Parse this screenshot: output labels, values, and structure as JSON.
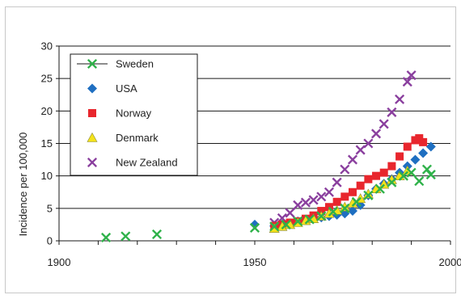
{
  "chart_data": {
    "type": "scatter",
    "title": "",
    "xlabel": "",
    "ylabel": "Incidence per 100,000",
    "xlim": [
      1900,
      2000
    ],
    "ylim": [
      0,
      30
    ],
    "xticks": [
      1900,
      1950,
      2000
    ],
    "xtick_labels": [
      "1900",
      "1950",
      "2000"
    ],
    "yticks": [
      0,
      5,
      10,
      15,
      20,
      25,
      30
    ],
    "ytick_labels": [
      "0",
      "5",
      "10",
      "15",
      "20",
      "25",
      "30"
    ],
    "grid": "horizontal",
    "legend_position": "top-left",
    "series": [
      {
        "name": "Sweden",
        "marker": "x-cross",
        "color": "#2fb24a",
        "x": [
          1912,
          1917,
          1925,
          1950,
          1955,
          1958,
          1961,
          1964,
          1967,
          1970,
          1973,
          1976,
          1979,
          1982,
          1985,
          1988,
          1990,
          1992,
          1994,
          1995
        ],
        "y": [
          0.5,
          0.7,
          1.0,
          2.0,
          2.2,
          2.5,
          3.0,
          3.3,
          3.8,
          4.5,
          5.0,
          6.0,
          7.0,
          8.0,
          9.0,
          10.0,
          10.5,
          9.2,
          11.0,
          10.2
        ]
      },
      {
        "name": "USA",
        "marker": "diamond",
        "color": "#1f6fc1",
        "x": [
          1950,
          1955,
          1957,
          1959,
          1961,
          1963,
          1965,
          1967,
          1969,
          1971,
          1973,
          1975,
          1977,
          1979,
          1981,
          1983,
          1985,
          1987,
          1989,
          1991,
          1993,
          1995
        ],
        "y": [
          2.5,
          2.3,
          2.5,
          2.7,
          3.0,
          3.2,
          3.4,
          3.6,
          3.8,
          4.0,
          4.2,
          4.6,
          5.5,
          7.0,
          8.0,
          8.8,
          9.5,
          10.5,
          11.5,
          12.5,
          13.5,
          14.5
        ]
      },
      {
        "name": "Norway",
        "marker": "square",
        "color": "#e8262d",
        "x": [
          1955,
          1957,
          1959,
          1961,
          1963,
          1965,
          1967,
          1969,
          1971,
          1973,
          1975,
          1977,
          1979,
          1981,
          1983,
          1985,
          1987,
          1989,
          1991,
          1992,
          1993
        ],
        "y": [
          2.3,
          2.5,
          2.8,
          3.0,
          3.4,
          3.9,
          4.6,
          5.2,
          6.0,
          6.8,
          7.5,
          8.5,
          9.5,
          10.0,
          10.5,
          11.5,
          13.0,
          14.5,
          15.5,
          15.8,
          15.2
        ]
      },
      {
        "name": "Denmark",
        "marker": "triangle",
        "color": "#f4e21a",
        "x": [
          1955,
          1957,
          1959,
          1961,
          1963,
          1965,
          1967,
          1969,
          1971,
          1973,
          1975,
          1977,
          1979,
          1981,
          1983,
          1985,
          1987,
          1989
        ],
        "y": [
          1.9,
          2.2,
          2.5,
          2.8,
          3.1,
          3.4,
          3.8,
          4.2,
          4.7,
          5.2,
          5.8,
          6.5,
          7.2,
          8.0,
          8.7,
          9.4,
          10.0,
          10.8
        ]
      },
      {
        "name": "New Zealand",
        "marker": "x-cross",
        "color": "#8a3f9e",
        "x": [
          1955,
          1957,
          1959,
          1961,
          1963,
          1965,
          1967,
          1969,
          1971,
          1973,
          1975,
          1977,
          1979,
          1981,
          1983,
          1985,
          1987,
          1989,
          1990
        ],
        "y": [
          2.8,
          3.5,
          4.3,
          5.5,
          5.9,
          6.3,
          6.8,
          7.5,
          9.0,
          11.0,
          12.5,
          14.0,
          15.0,
          16.5,
          18.0,
          19.8,
          21.8,
          24.5,
          25.5
        ]
      }
    ]
  }
}
